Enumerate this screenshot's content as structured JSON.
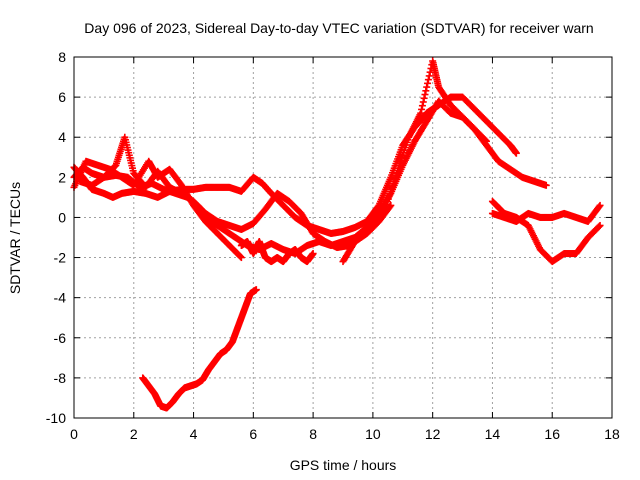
{
  "chart_data": {
    "type": "scatter",
    "title": "Day 096 of 2023, Sidereal Day-to-day VTEC variation (SDTVAR) for receiver warn",
    "xlabel": "GPS time / hours",
    "ylabel": "SDTVAR / TECUs",
    "xlim": [
      0,
      18
    ],
    "ylim": [
      -10,
      8
    ],
    "xticks": [
      0,
      2,
      4,
      6,
      8,
      10,
      12,
      14,
      16,
      18
    ],
    "yticks": [
      -10,
      -8,
      -6,
      -4,
      -2,
      0,
      2,
      4,
      6,
      8
    ],
    "grid": true,
    "marker": "+",
    "color": "#ff0000",
    "series": [
      {
        "name": "arc-1",
        "x": [
          0.0,
          0.3,
          0.6,
          1.0,
          1.3,
          1.6,
          2.0,
          2.4,
          2.8,
          3.2,
          3.6,
          4.0,
          4.4,
          4.8,
          5.2,
          5.6,
          6.0,
          6.3,
          6.6,
          7.0,
          7.4,
          7.8,
          8.2,
          8.6,
          9.0,
          9.4,
          9.8,
          10.2,
          10.6,
          11.0,
          11.4,
          11.8,
          12.0,
          12.2,
          12.6,
          13.0,
          13.4,
          13.8,
          14.2,
          14.6,
          14.8
        ],
        "y": [
          2.5,
          2.0,
          1.4,
          1.2,
          1.0,
          1.2,
          1.3,
          1.2,
          1.0,
          1.3,
          1.4,
          1.4,
          1.5,
          1.5,
          1.5,
          1.3,
          2.0,
          1.7,
          1.2,
          0.6,
          0.0,
          -0.4,
          -0.6,
          -0.8,
          -0.7,
          -0.5,
          -0.2,
          0.6,
          2.0,
          3.6,
          4.5,
          5.2,
          5.4,
          5.6,
          6.0,
          6.0,
          5.4,
          4.8,
          4.2,
          3.6,
          3.2
        ]
      },
      {
        "name": "arc-2",
        "x": [
          0.0,
          0.3,
          0.6,
          1.0,
          1.4,
          1.8,
          2.2,
          2.6,
          3.0,
          3.4,
          3.8,
          4.2,
          4.6,
          5.0,
          5.4,
          5.8,
          6.2,
          6.6,
          7.0,
          7.4,
          7.8,
          8.2,
          8.6,
          9.0,
          9.4,
          9.8,
          10.2,
          10.6,
          11.0,
          11.4,
          11.8,
          12.2,
          12.6,
          13.0,
          13.4,
          13.8,
          14.2,
          14.6,
          15.0,
          15.4,
          15.8
        ],
        "y": [
          2.0,
          2.5,
          2.2,
          2.0,
          2.1,
          2.0,
          1.5,
          1.7,
          1.4,
          1.2,
          1.0,
          0.5,
          -0.2,
          -0.6,
          -1.0,
          -1.4,
          -1.6,
          -1.3,
          -1.6,
          -1.8,
          -1.4,
          -1.2,
          -1.4,
          -1.2,
          -1.0,
          -0.5,
          0.2,
          1.2,
          2.6,
          3.8,
          4.8,
          5.8,
          5.2,
          5.0,
          4.4,
          3.6,
          2.8,
          2.4,
          2.0,
          1.8,
          1.6
        ]
      },
      {
        "name": "arc-3",
        "x": [
          0.2,
          0.6,
          1.0,
          1.4,
          1.7,
          2.0,
          2.4,
          2.8,
          3.2,
          3.6,
          4.0,
          4.4,
          4.8,
          5.2,
          5.6,
          6.0,
          6.4,
          6.8,
          7.2,
          7.6,
          8.0,
          8.4,
          8.8,
          9.2,
          9.6,
          10.0,
          10.4,
          10.8,
          11.2,
          11.6,
          12.0,
          12.2,
          12.6,
          13.0,
          13.4,
          13.8
        ],
        "y": [
          1.8,
          1.6,
          2.0,
          2.6,
          4.0,
          2.2,
          1.5,
          2.3,
          1.5,
          1.2,
          0.8,
          0.2,
          -0.2,
          -0.4,
          -0.6,
          -0.3,
          0.4,
          1.2,
          0.8,
          0.2,
          -0.8,
          -1.2,
          -1.5,
          -1.4,
          -1.0,
          -0.5,
          0.4,
          2.2,
          4.0,
          5.2,
          7.8,
          6.5,
          5.6,
          5.0,
          4.4,
          3.8
        ]
      },
      {
        "name": "arc-4",
        "x": [
          0.0,
          0.4,
          0.8,
          1.2,
          1.6,
          2.0,
          2.5,
          2.8,
          3.2,
          3.6,
          4.0,
          4.4,
          4.8,
          5.2,
          5.6
        ],
        "y": [
          1.5,
          2.8,
          2.6,
          2.4,
          2.0,
          1.6,
          2.8,
          2.0,
          2.4,
          1.6,
          0.6,
          -0.2,
          -0.8,
          -1.4,
          -2.0
        ]
      },
      {
        "name": "arc-5",
        "x": [
          5.6,
          5.8,
          6.0,
          6.2,
          6.4,
          6.6,
          6.8,
          7.0,
          7.2,
          7.4,
          7.6,
          7.8,
          8.0
        ],
        "y": [
          -1.4,
          -1.2,
          -1.8,
          -1.2,
          -2.0,
          -2.2,
          -2.0,
          -2.2,
          -1.8,
          -1.6,
          -2.0,
          -2.2,
          -1.8
        ]
      },
      {
        "name": "arc-6",
        "x": [
          2.3,
          2.5,
          2.7,
          2.9,
          3.1,
          3.3,
          3.5,
          3.7,
          3.9,
          4.1,
          4.3,
          4.5,
          4.7,
          4.9,
          5.1,
          5.3,
          5.5,
          5.7,
          5.9,
          6.1
        ],
        "y": [
          -8.0,
          -8.4,
          -8.8,
          -9.4,
          -9.5,
          -9.2,
          -8.8,
          -8.5,
          -8.4,
          -8.3,
          -8.1,
          -7.6,
          -7.2,
          -6.8,
          -6.6,
          -6.2,
          -5.4,
          -4.6,
          -3.8,
          -3.6
        ]
      },
      {
        "name": "arc-7",
        "x": [
          14.0,
          14.4,
          14.8,
          15.2,
          15.6,
          16.0,
          16.4,
          16.8,
          17.2,
          17.6
        ],
        "y": [
          0.8,
          0.2,
          0.0,
          -0.4,
          -1.6,
          -2.2,
          -1.8,
          -1.8,
          -1.0,
          -0.4
        ]
      },
      {
        "name": "arc-8",
        "x": [
          14.0,
          14.4,
          14.8,
          15.2,
          15.6,
          16.0,
          16.4,
          16.8,
          17.2,
          17.6
        ],
        "y": [
          0.2,
          0.0,
          -0.2,
          0.2,
          0.0,
          0.0,
          0.2,
          0.0,
          -0.2,
          0.6
        ]
      },
      {
        "name": "arc-9",
        "x": [
          9.0,
          9.4,
          9.8,
          10.2,
          10.6
        ],
        "y": [
          -2.2,
          -1.2,
          -0.8,
          -0.2,
          0.6
        ]
      }
    ]
  }
}
